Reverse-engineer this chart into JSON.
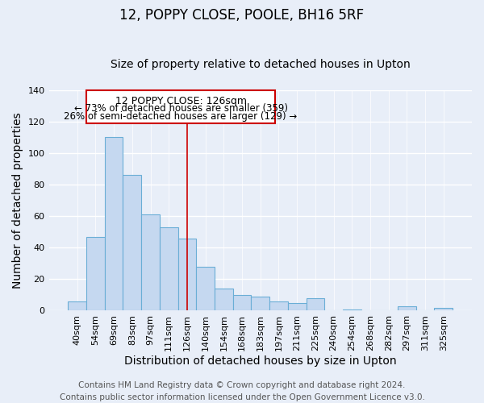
{
  "title": "12, POPPY CLOSE, POOLE, BH16 5RF",
  "subtitle": "Size of property relative to detached houses in Upton",
  "xlabel": "Distribution of detached houses by size in Upton",
  "ylabel": "Number of detached properties",
  "bin_labels": [
    "40sqm",
    "54sqm",
    "69sqm",
    "83sqm",
    "97sqm",
    "111sqm",
    "126sqm",
    "140sqm",
    "154sqm",
    "168sqm",
    "183sqm",
    "197sqm",
    "211sqm",
    "225sqm",
    "240sqm",
    "254sqm",
    "268sqm",
    "282sqm",
    "297sqm",
    "311sqm",
    "325sqm"
  ],
  "bar_values": [
    6,
    47,
    110,
    86,
    61,
    53,
    46,
    28,
    14,
    10,
    9,
    6,
    5,
    8,
    0,
    1,
    0,
    0,
    3,
    0,
    2
  ],
  "bar_color": "#c5d8f0",
  "bar_edge_color": "#6aaed6",
  "vline_x_index": 6,
  "vline_color": "#cc0000",
  "box_text_line1": "12 POPPY CLOSE: 126sqm",
  "box_text_line2": "← 73% of detached houses are smaller (359)",
  "box_text_line3": "26% of semi-detached houses are larger (129) →",
  "box_color": "#cc0000",
  "box_fill": "#ffffff",
  "ylim": [
    0,
    140
  ],
  "yticks": [
    0,
    20,
    40,
    60,
    80,
    100,
    120,
    140
  ],
  "footer_line1": "Contains HM Land Registry data © Crown copyright and database right 2024.",
  "footer_line2": "Contains public sector information licensed under the Open Government Licence v3.0.",
  "background_color": "#e8eef8",
  "plot_bg_color": "#e8eef8",
  "grid_color": "#d0d8e8",
  "title_fontsize": 12,
  "subtitle_fontsize": 10,
  "axis_label_fontsize": 10,
  "tick_fontsize": 8,
  "footer_fontsize": 7.5
}
